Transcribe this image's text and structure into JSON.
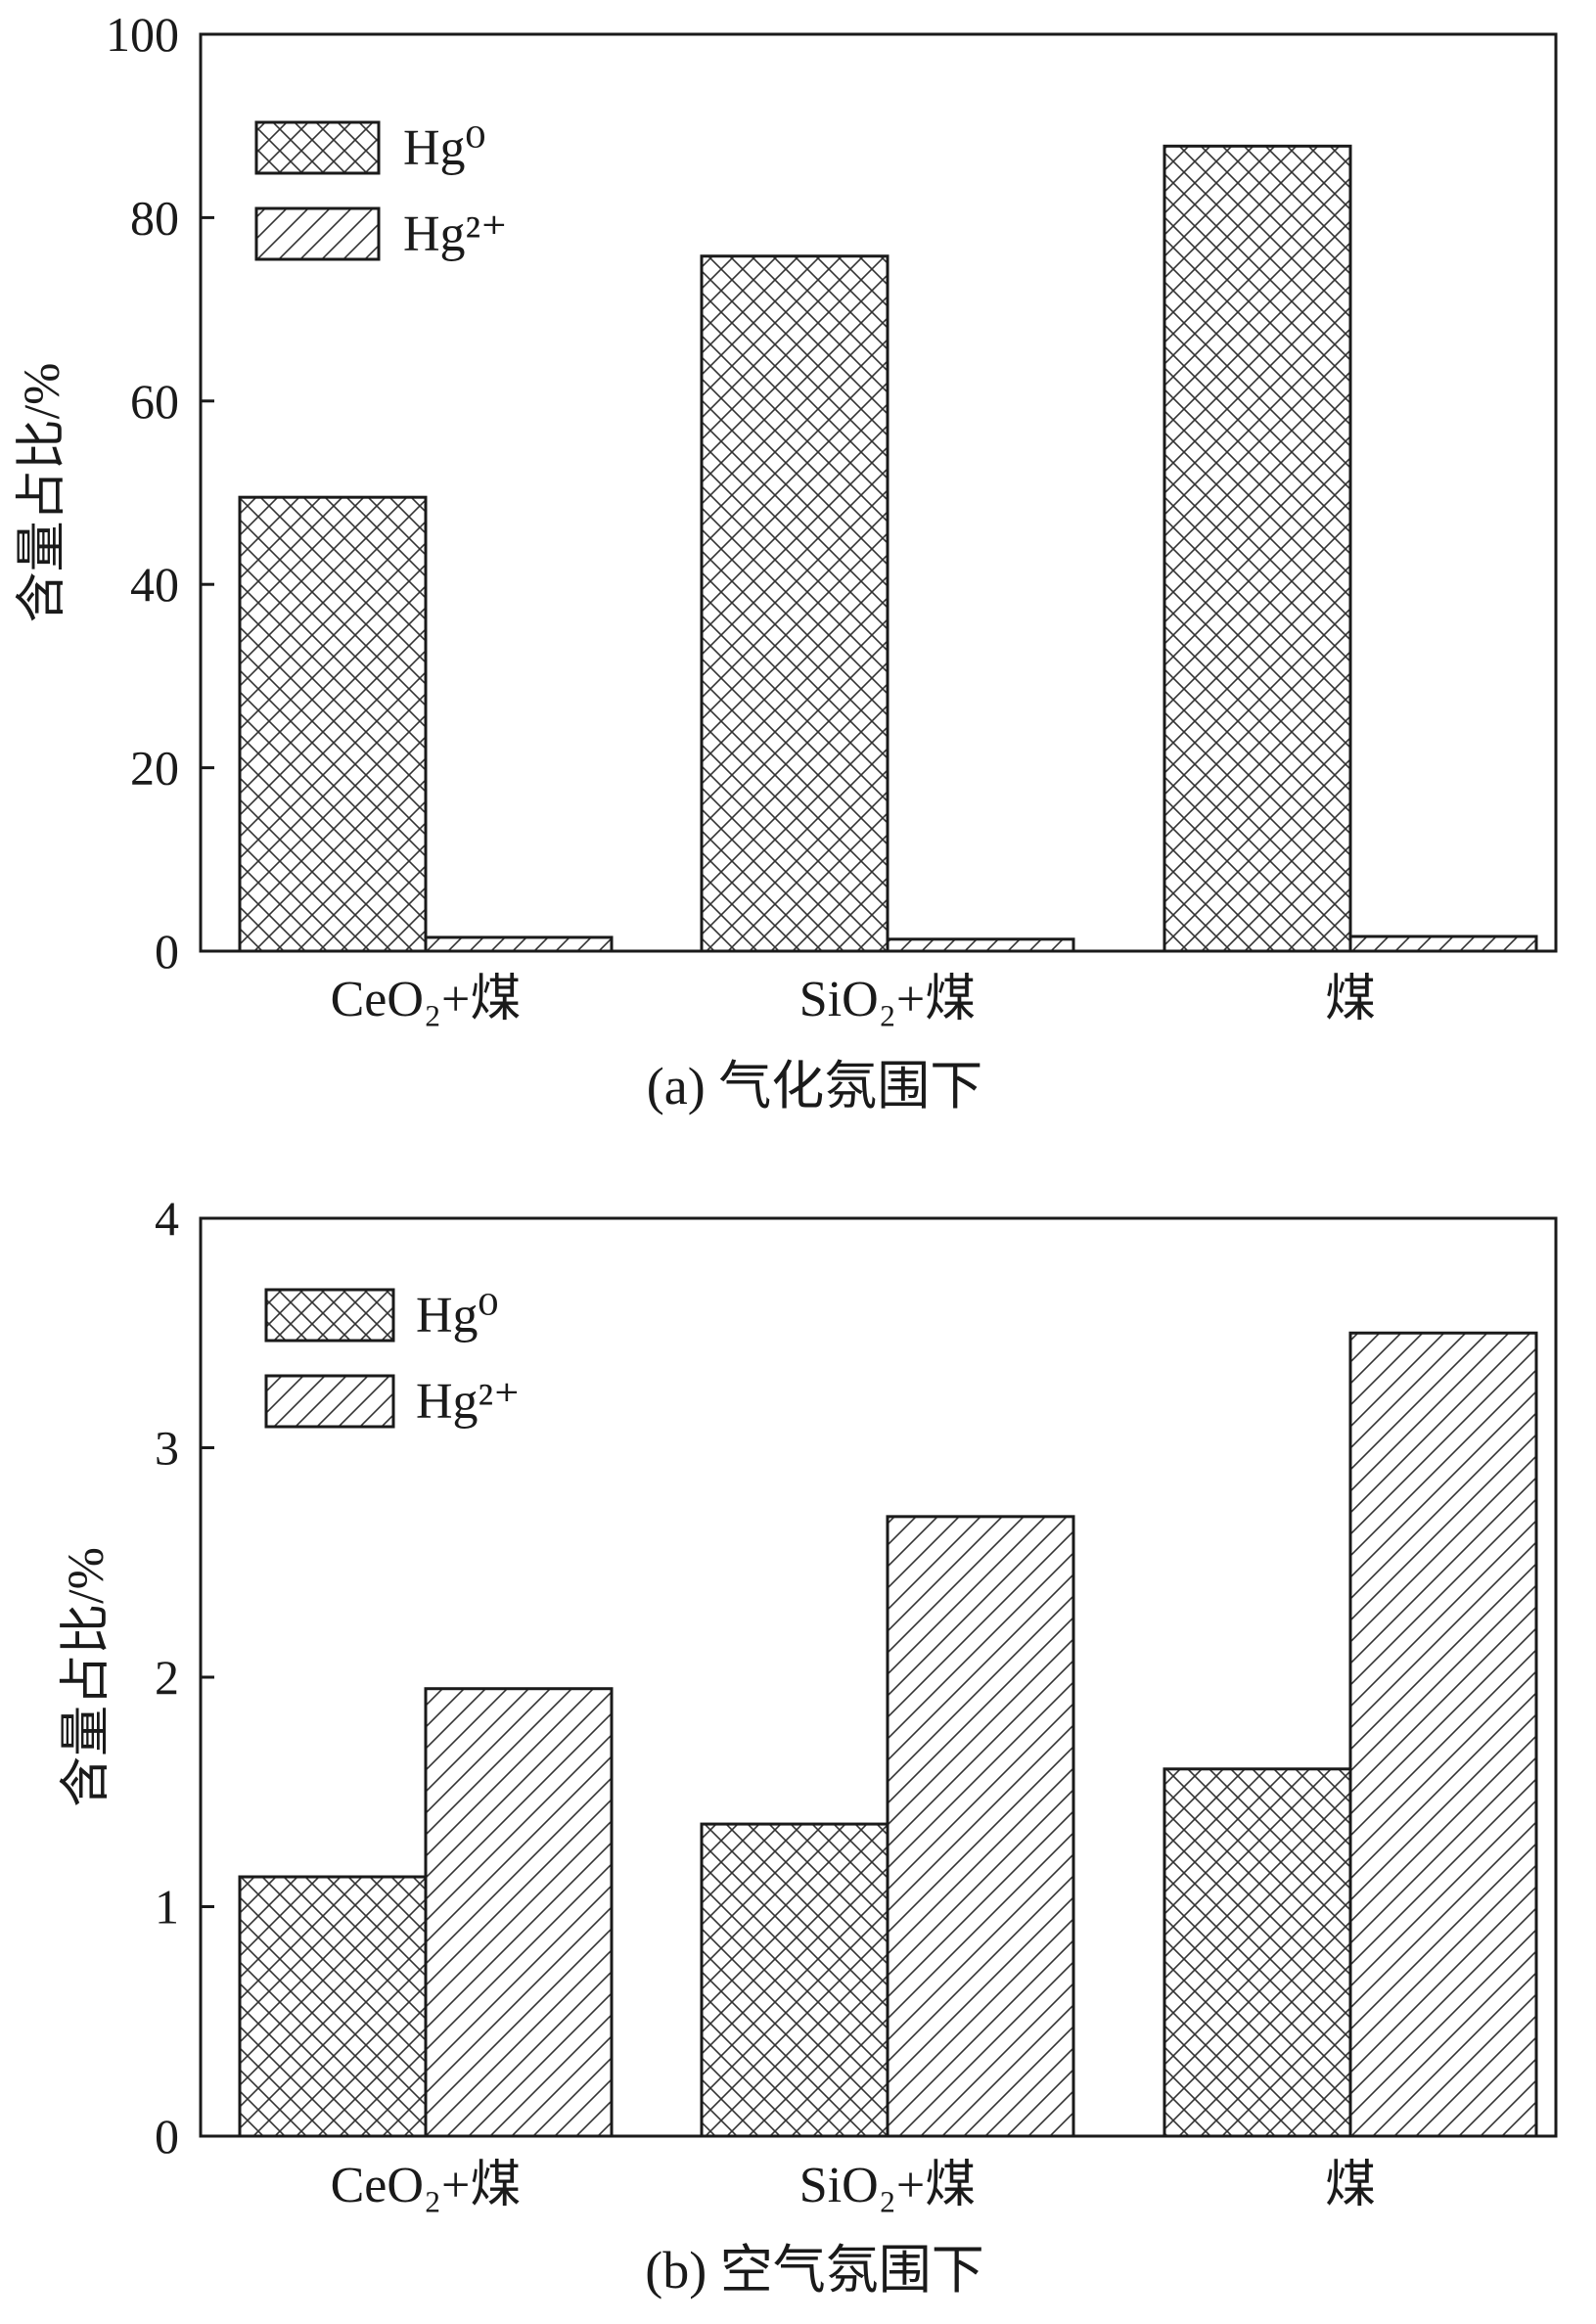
{
  "colors": {
    "axis": "#1a1a1a",
    "bar_fill": "#ffffff",
    "hatch": "#333333"
  },
  "legend_placement": "top-left",
  "chart_data": [
    {
      "type": "bar",
      "caption": "(a) 气化氛围下",
      "ylabel": "含量占比/%",
      "ylim": [
        0,
        100
      ],
      "yticks": [
        0,
        20,
        40,
        60,
        80,
        100
      ],
      "grid": false,
      "categories": [
        "CeO₂+煤",
        "SiO₂+煤",
        "煤"
      ],
      "series": [
        {
          "name": "Hg⁰",
          "pattern": "crosshatch",
          "values": [
            49.5,
            75.8,
            87.8
          ]
        },
        {
          "name": "Hg²⁺",
          "pattern": "diagonal",
          "values": [
            1.5,
            1.3,
            1.6
          ]
        }
      ]
    },
    {
      "type": "bar",
      "caption": "(b) 空气氛围下",
      "ylabel": "含量占比/%",
      "ylim": [
        0,
        4
      ],
      "yticks": [
        0,
        1,
        2,
        3,
        4
      ],
      "grid": false,
      "categories": [
        "CeO₂+煤",
        "SiO₂+煤",
        "煤"
      ],
      "series": [
        {
          "name": "Hg⁰",
          "pattern": "crosshatch",
          "values": [
            1.13,
            1.36,
            1.6
          ]
        },
        {
          "name": "Hg²⁺",
          "pattern": "diagonal",
          "values": [
            1.95,
            2.7,
            3.5
          ]
        }
      ]
    }
  ]
}
